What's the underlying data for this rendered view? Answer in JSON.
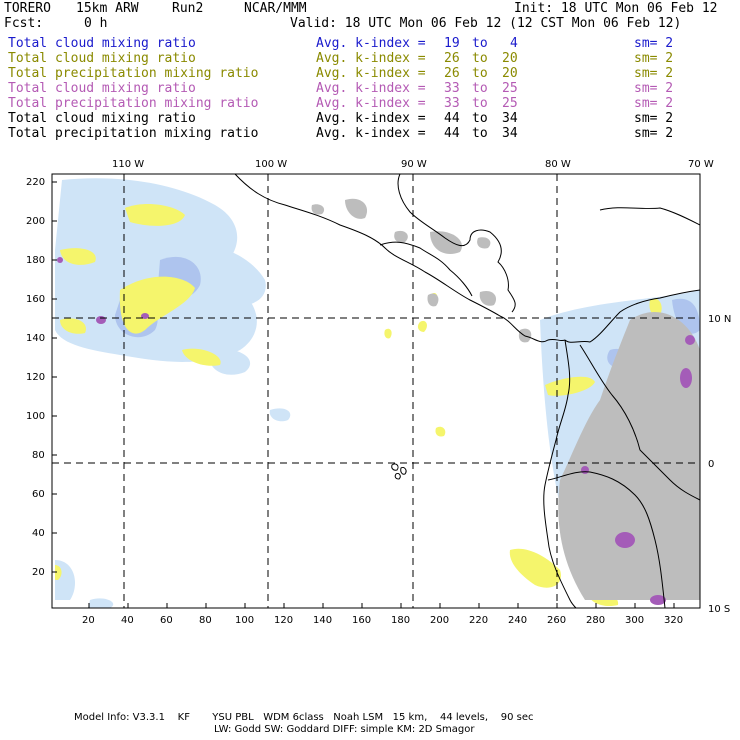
{
  "header": {
    "model": "TORERO",
    "resolution": "15km ARW",
    "run": "Run2",
    "org": "NCAR/MMM",
    "init": "Init: 18 UTC Mon 06 Feb 12",
    "fcst_label": "Fcst:",
    "fcst_value": "0 h",
    "valid": "Valid: 18 UTC Mon 06 Feb 12 (12 CST Mon 06 Feb 12)"
  },
  "legend": [
    {
      "field": "Total cloud mixing ratio",
      "kindex": "Avg. k-index =",
      "k1": "19",
      "to": "to",
      "k2": "4",
      "sm": "sm= 2",
      "color": "#1a1acc"
    },
    {
      "field": "Total cloud mixing ratio",
      "kindex": "Avg. k-index =",
      "k1": "26",
      "to": "to",
      "k2": "20",
      "sm": "sm= 2",
      "color": "#8a8a00"
    },
    {
      "field": "Total precipitation mixing ratio",
      "kindex": "Avg. k-index =",
      "k1": "26",
      "to": "to",
      "k2": "20",
      "sm": "sm= 2",
      "color": "#8a8a00"
    },
    {
      "field": "Total cloud mixing ratio",
      "kindex": "Avg. k-index =",
      "k1": "33",
      "to": "to",
      "k2": "25",
      "sm": "sm= 2",
      "color": "#b45ab4"
    },
    {
      "field": "Total precipitation mixing ratio",
      "kindex": "Avg. k-index =",
      "k1": "33",
      "to": "to",
      "k2": "25",
      "sm": "sm= 2",
      "color": "#b45ab4"
    },
    {
      "field": "Total cloud mixing ratio",
      "kindex": "Avg. k-index =",
      "k1": "44",
      "to": "to",
      "k2": "34",
      "sm": "sm= 2",
      "color": "#000000"
    },
    {
      "field": "Total precipitation mixing ratio",
      "kindex": "Avg. k-index =",
      "k1": "44",
      "to": "to",
      "k2": "34",
      "sm": "sm= 2",
      "color": "#000000"
    }
  ],
  "map": {
    "lon_labels": [
      "110 W",
      "100 W",
      "90 W",
      "80 W",
      "70 W"
    ],
    "lat_labels": [
      "10 N",
      "0",
      "10 S"
    ],
    "y_ticks": [
      "220",
      "200",
      "180",
      "160",
      "140",
      "120",
      "100",
      "80",
      "60",
      "40",
      "20"
    ],
    "x_ticks": [
      "20",
      "40",
      "60",
      "80",
      "100",
      "120",
      "140",
      "160",
      "180",
      "200",
      "220",
      "240",
      "260",
      "280",
      "300",
      "320"
    ],
    "colors": {
      "light_blue": "#cfe4f7",
      "mid_blue": "#aec4ee",
      "yellow": "#f5f56c",
      "purple": "#a45cb8",
      "gray": "#bdbdbd"
    }
  },
  "footer": {
    "line1": "Model Info: V3.3.1    KF       YSU PBL   WDM 6class   Noah LSM   15 km,    44 levels,    90 sec",
    "line2": "LW: Godd SW: Goddard DIFF: simple KM: 2D Smagor"
  }
}
